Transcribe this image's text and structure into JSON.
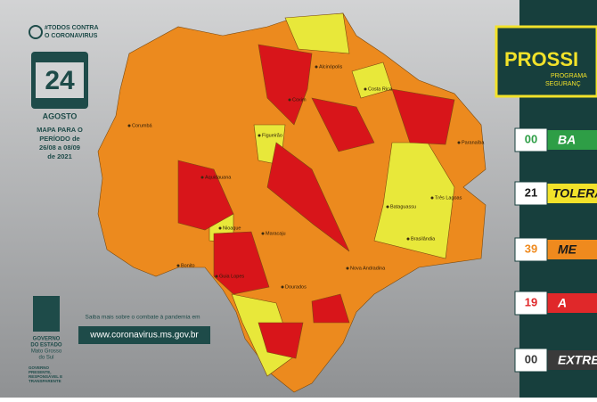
{
  "header": {
    "hashtag": [
      "#TODOS CONTRA",
      "O CORONAVIRUS"
    ],
    "calendar": {
      "day": "24",
      "month": "AGOSTO"
    },
    "period": [
      "MAPA PARA O",
      "PERÍODO de",
      "26/08 a 08/09",
      "de 2021"
    ]
  },
  "government": {
    "name": [
      "GOVERNO",
      "DO ESTADO",
      "Mato Grosso",
      "do Sul"
    ],
    "motto": [
      "GOVERNO",
      "PRESENTE,",
      "RESPONSÁVEL E",
      "TRANSPARENTE"
    ]
  },
  "footer": {
    "text": "Saiba mais sobre o combate à pandemia em",
    "url": "www.coronavirus.ms.gov.br"
  },
  "program": {
    "title": "PROSSI",
    "subtitle": [
      "PROGRAMA",
      "SEGURANÇ"
    ]
  },
  "legend": [
    {
      "count": "00",
      "label": "BA"
    },
    {
      "count": "21",
      "label": "TOLERA"
    },
    {
      "count": "39",
      "label": "ME"
    },
    {
      "count": "19",
      "label": "A"
    },
    {
      "count": "00",
      "label": "EXTRE"
    }
  ],
  "map": {
    "cities": [
      "Corumbá",
      "Aquidauana",
      "Três Lagoas",
      "Paranaíba",
      "Nova Andradina",
      "Dourados",
      "Alcinópolis",
      "Costa Rica",
      "Coxim",
      "Figueirão",
      "Bonito",
      "Bataguassu",
      "Brasilândia",
      "Guia Lopes",
      "Maracaju",
      "Nioaque"
    ]
  }
}
